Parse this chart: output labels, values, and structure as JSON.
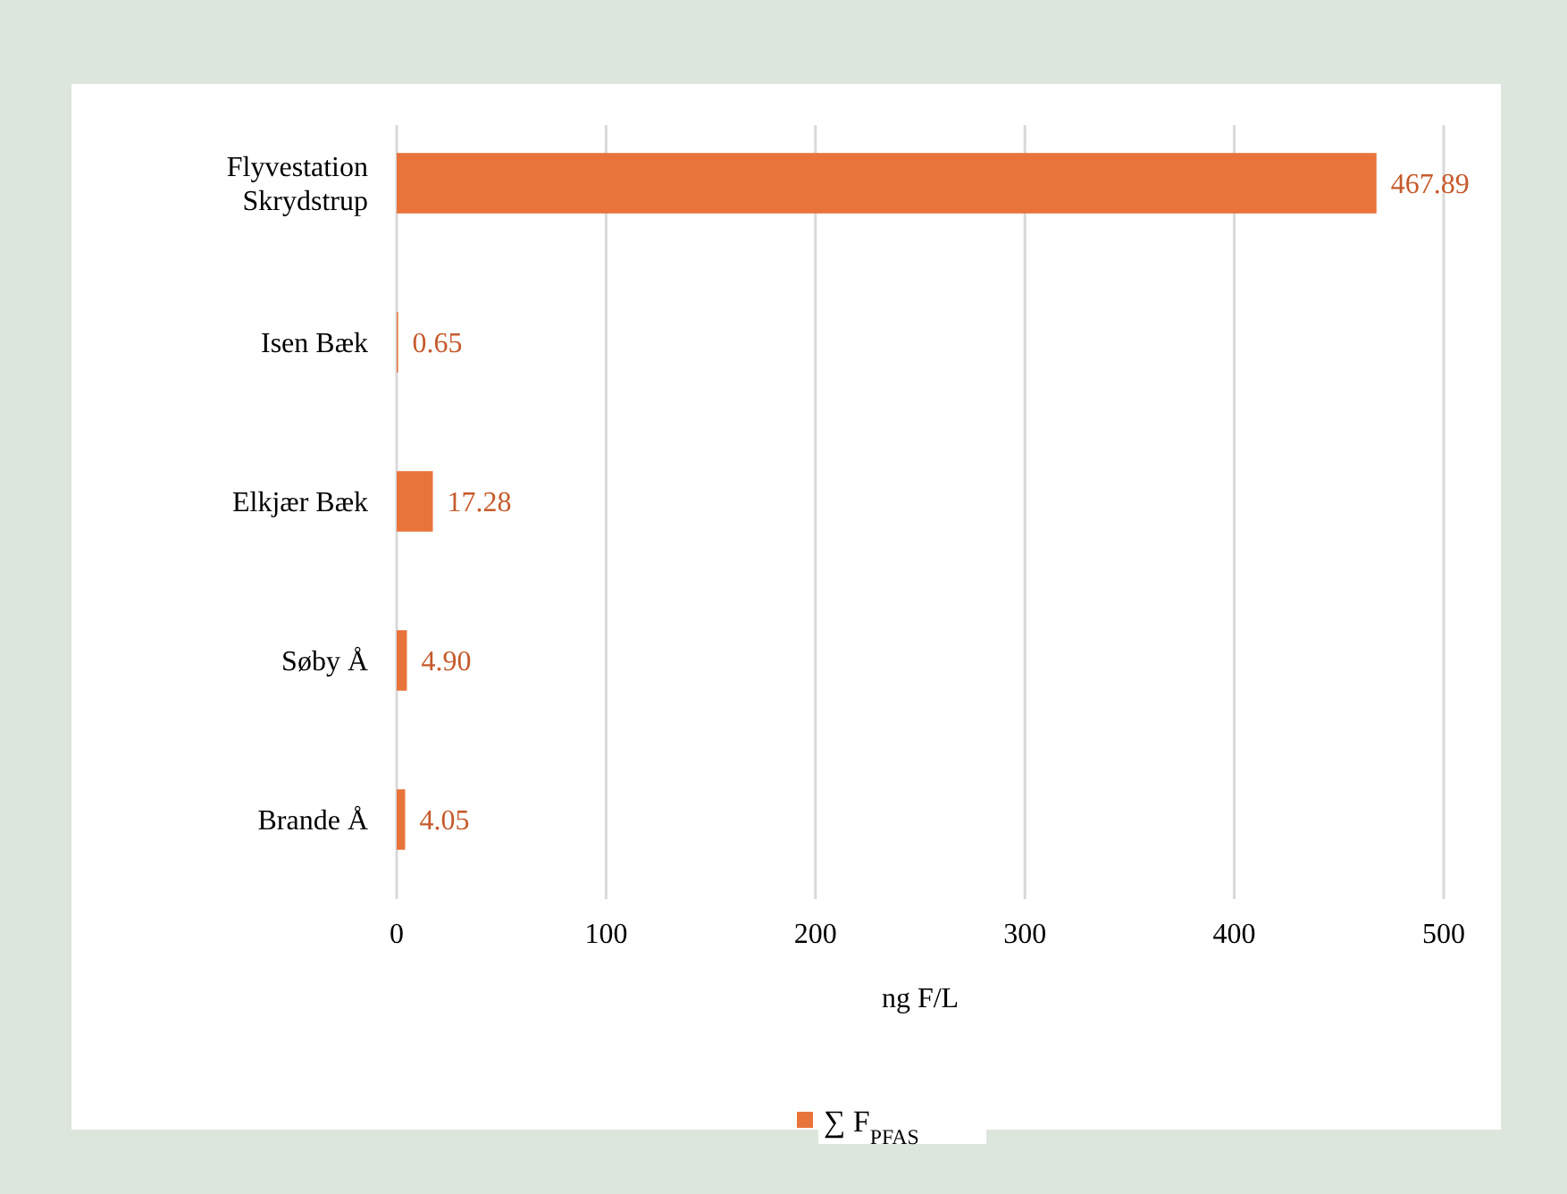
{
  "chart_data": {
    "type": "bar",
    "orientation": "horizontal",
    "categories": [
      "Flyvestation Skrydstrup",
      "Isen Bæk",
      "Elkjær Bæk",
      "Søby Å",
      "Brande Å"
    ],
    "series": [
      {
        "name": "∑ F$_{PFAS}$",
        "color": "#e8743b",
        "values": [
          467.89,
          0.65,
          17.28,
          4.9,
          4.05
        ],
        "value_labels": [
          "467.89",
          "0.65",
          "17.28",
          "4.90",
          "4.05"
        ]
      }
    ],
    "xlim": [
      0,
      500
    ],
    "xticks": [
      0,
      100,
      200,
      300,
      400,
      500
    ],
    "xlabel": "ng F/L",
    "grid": "x",
    "legend": "bottom"
  }
}
